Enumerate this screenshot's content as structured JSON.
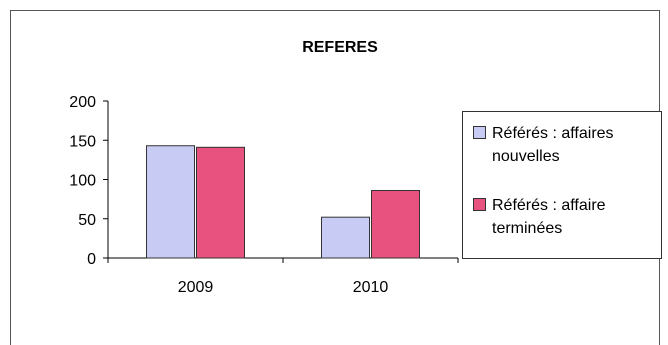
{
  "chart_data": {
    "type": "bar",
    "title": "REFERES",
    "categories": [
      "2009",
      "2010"
    ],
    "series": [
      {
        "name": "Référés : affaires nouvelles",
        "values": [
          143,
          52
        ],
        "color": "#c8ccf5"
      },
      {
        "name": "Référés : affaire terminées",
        "values": [
          141,
          86
        ],
        "color": "#e8527f"
      }
    ],
    "ylim": [
      0,
      200
    ],
    "yticks": [
      0,
      50,
      100,
      150,
      200
    ],
    "xlabel": "",
    "ylabel": "",
    "grid": false,
    "legend": "right"
  },
  "legend": {
    "items": [
      {
        "line1": "Référés : affaires",
        "line2": "nouvelles"
      },
      {
        "line1": "Référés : affaire",
        "line2": "terminées"
      }
    ]
  }
}
